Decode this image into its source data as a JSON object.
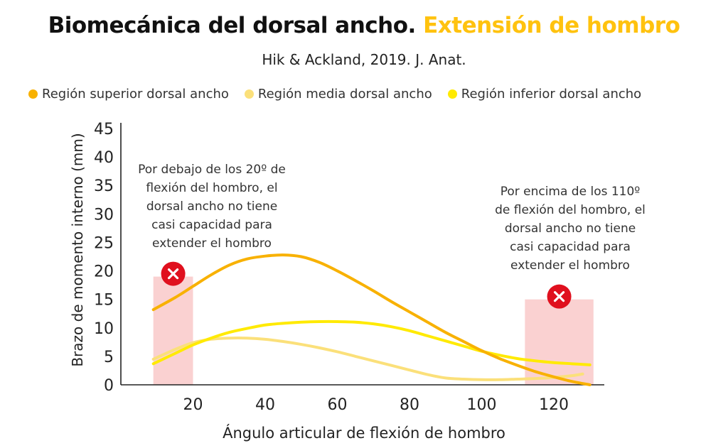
{
  "title": {
    "main": "Biomecánica del dorsal ancho.",
    "accent": "Extensión de hombro"
  },
  "subtitle": "Hik & Ackland, 2019. J. Anat.",
  "colors": {
    "accent": "#FFC20E",
    "shade": "#F9C9C9",
    "x_marker": "#E0101E"
  },
  "legend": [
    {
      "label": "Región superior dorsal ancho",
      "color": "#F8B100"
    },
    {
      "label": "Región media dorsal ancho",
      "color": "#FBE07A"
    },
    {
      "label": "Región inferior dorsal ancho",
      "color": "#FFEA00"
    }
  ],
  "notes": {
    "left": "Por debajo de los 20º de\nflexión del hombro, el\ndorsal ancho no tiene\ncasi capacidad para\nextender el hombro",
    "right": "Por encima de los 110º\nde flexión del hombro, el\ndorsal ancho no tiene\ncasi capacidad para\nextender el hombro"
  },
  "chart_data": {
    "type": "line",
    "xlabel": "Ángulo articular de flexión de hombro",
    "ylabel": "Brazo de momento interno (mm)",
    "xlim": [
      0,
      134
    ],
    "ylim": [
      0,
      45
    ],
    "xticks": [
      20,
      40,
      60,
      80,
      100,
      120
    ],
    "yticks": [
      0,
      5,
      10,
      15,
      20,
      25,
      30,
      35,
      40,
      45
    ],
    "grid": false,
    "legend_position": "top",
    "series": [
      {
        "name": "Región superior dorsal ancho",
        "color": "#F8B100",
        "x": [
          9,
          15,
          20,
          25,
          30,
          35,
          40,
          45,
          50,
          55,
          60,
          65,
          70,
          75,
          80,
          85,
          90,
          95,
          100,
          105,
          110,
          115,
          120,
          125,
          130
        ],
        "y": [
          13.2,
          15.3,
          17.3,
          19.3,
          21.0,
          22.1,
          22.6,
          22.8,
          22.5,
          21.5,
          20.0,
          18.3,
          16.5,
          14.6,
          12.8,
          11.0,
          9.2,
          7.6,
          6.0,
          4.6,
          3.4,
          2.3,
          1.4,
          0.6,
          0.0
        ]
      },
      {
        "name": "Región media dorsal ancho",
        "color": "#FBE07A",
        "x": [
          9,
          15,
          20,
          25,
          30,
          35,
          40,
          45,
          50,
          55,
          60,
          65,
          70,
          75,
          80,
          85,
          90,
          95,
          100,
          105,
          110,
          115,
          120,
          125,
          128
        ],
        "y": [
          4.5,
          6.2,
          7.4,
          8.0,
          8.2,
          8.2,
          8.0,
          7.6,
          7.1,
          6.5,
          5.8,
          5.0,
          4.2,
          3.4,
          2.6,
          1.8,
          1.2,
          1.0,
          0.9,
          0.9,
          1.0,
          1.1,
          1.3,
          1.6,
          1.9
        ]
      },
      {
        "name": "Región inferior dorsal ancho",
        "color": "#FFEA00",
        "x": [
          9,
          15,
          20,
          25,
          30,
          35,
          40,
          45,
          50,
          55,
          60,
          65,
          70,
          75,
          80,
          85,
          90,
          95,
          100,
          105,
          110,
          115,
          120,
          125,
          130
        ],
        "y": [
          3.7,
          5.5,
          7.0,
          8.2,
          9.2,
          9.9,
          10.5,
          10.8,
          11.0,
          11.1,
          11.1,
          11.0,
          10.7,
          10.2,
          9.5,
          8.6,
          7.7,
          6.8,
          5.9,
          5.2,
          4.6,
          4.2,
          3.9,
          3.7,
          3.5
        ]
      }
    ],
    "shaded_regions": [
      {
        "x_from": 9,
        "x_to": 20,
        "y_to": 19
      },
      {
        "x_from": 112,
        "x_to": 131,
        "y_to": 15
      }
    ]
  }
}
